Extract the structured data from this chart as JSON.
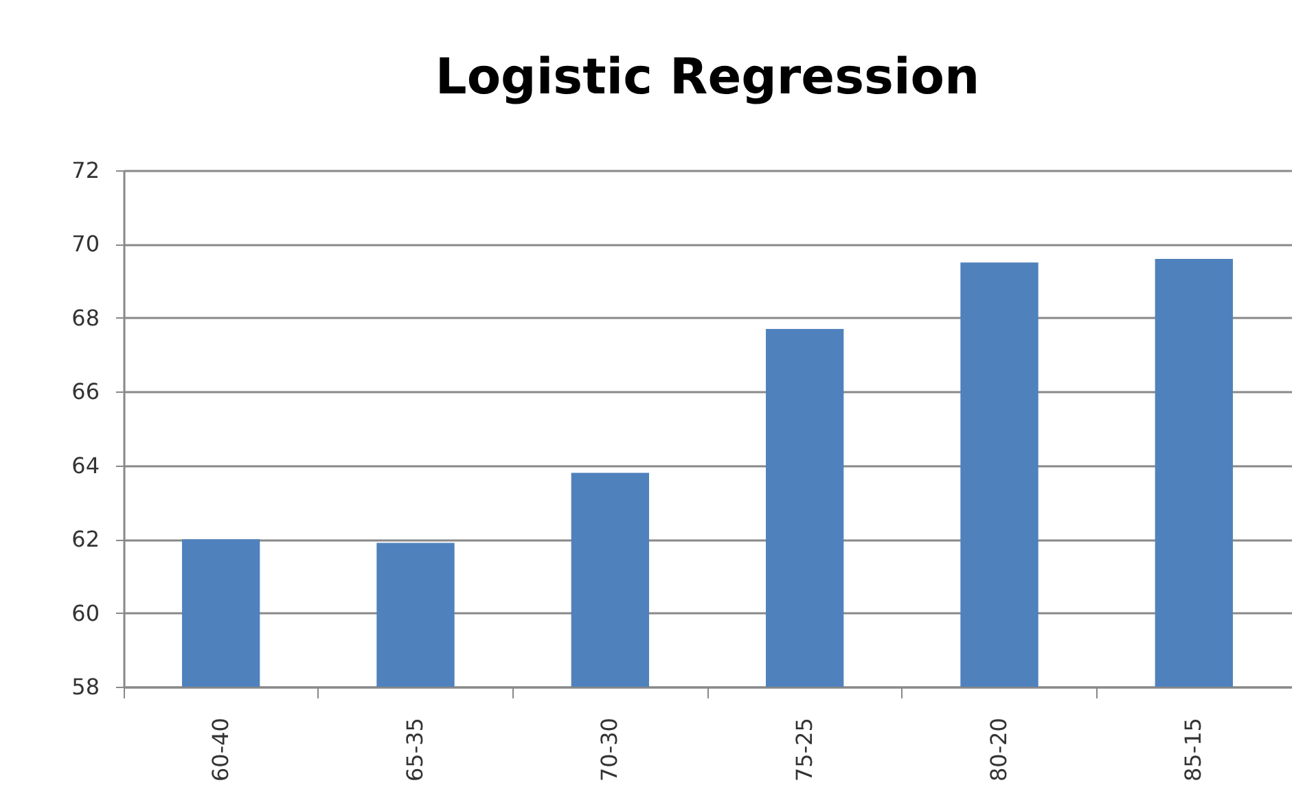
{
  "chart_data": {
    "type": "bar",
    "title": "Logistic Regression",
    "categories": [
      "60-40",
      "65-35",
      "70-30",
      "75-25",
      "80-20",
      "85-15"
    ],
    "values": [
      62.0,
      61.9,
      63.8,
      67.7,
      69.5,
      69.6
    ],
    "color": "#4f81bd",
    "ylim": [
      58,
      72
    ],
    "yticks": [
      58,
      60,
      62,
      64,
      66,
      68,
      70,
      72
    ],
    "grid": "y",
    "legend": false
  }
}
